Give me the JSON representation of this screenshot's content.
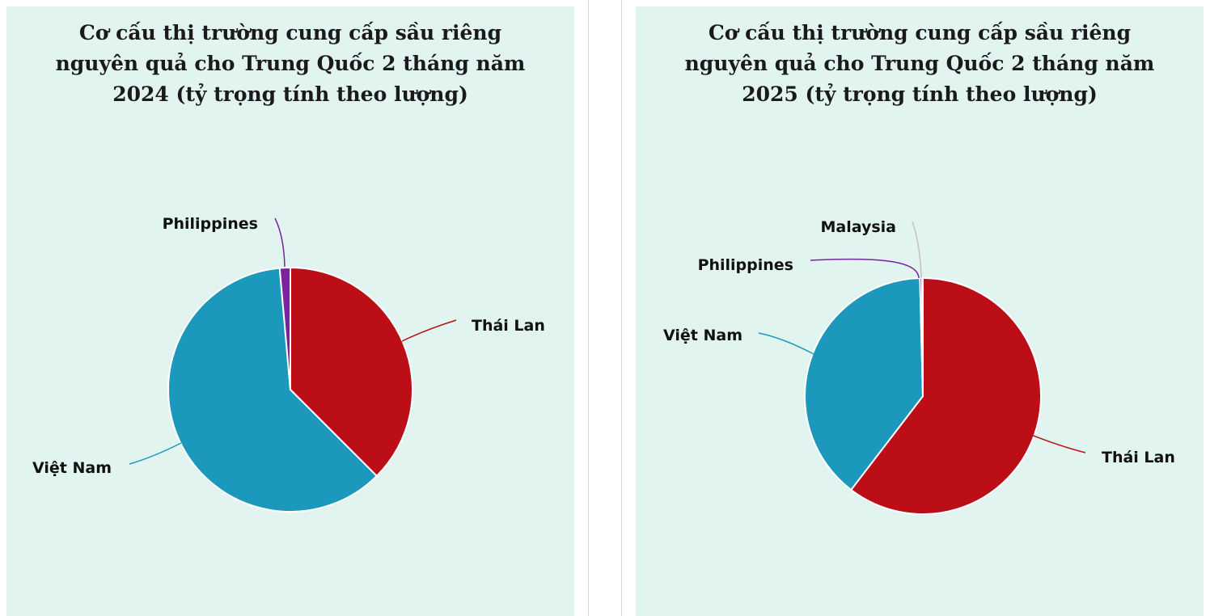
{
  "chart_data": [
    {
      "type": "pie",
      "title": "Cơ cấu thị trường cung cấp sầu riêng nguyên quả cho Trung Quốc 2 tháng năm 2024 (tỷ trọng tính theo lượng)",
      "categories": [
        "Thái Lan",
        "Việt Nam",
        "Philippines"
      ],
      "values": [
        37.5,
        61.1,
        1.4
      ],
      "colors": [
        "#bb0e17",
        "#1b98bb",
        "#7b22a0"
      ]
    },
    {
      "type": "pie",
      "title": "Cơ cấu thị trường cung cấp sầu riêng nguyên quả cho Trung Quốc 2 tháng năm 2025 (tỷ trọng tính theo lượng)",
      "categories": [
        "Thái Lan",
        "Việt Nam",
        "Philippines",
        "Malaysia"
      ],
      "values": [
        60.4,
        39.2,
        0.3,
        0.1
      ],
      "colors": [
        "#bb0e17",
        "#1b98bb",
        "#7b22a0",
        "#c2c2c2"
      ]
    }
  ]
}
